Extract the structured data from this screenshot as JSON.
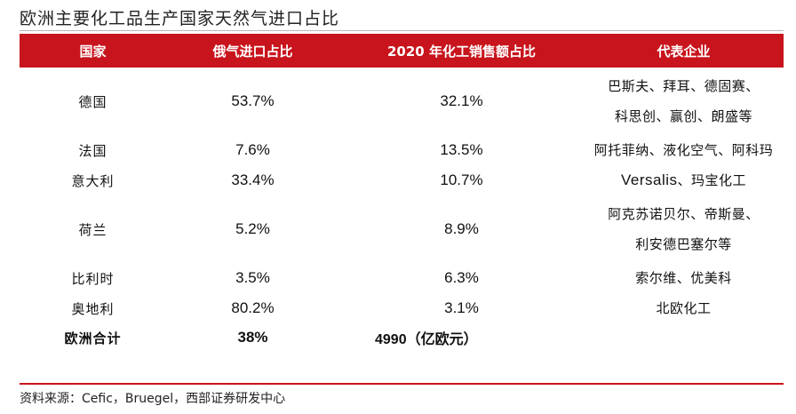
{
  "title": "欧洲主要化工品生产国家天然气进口占比",
  "headers": [
    "国家",
    "俄气进口占比",
    "2020 年化工销售额占比",
    "代表企业"
  ],
  "rows": [
    {
      "country": "德国",
      "gas": "53.7%",
      "sales": "32.1%",
      "companies": [
        "巴斯夫、拜耳、德固赛、",
        "科思创、赢创、朗盛等"
      ]
    },
    {
      "country": "法国",
      "gas": "7.6%",
      "sales": "13.5%",
      "companies": [
        "阿托菲纳、液化空气、阿科玛"
      ]
    },
    {
      "country": "意大利",
      "gas": "33.4%",
      "sales": "10.7%",
      "companies_latin": "Versalis",
      "companies_rest": "、玛宝化工"
    },
    {
      "country": "荷兰",
      "gas": "5.2%",
      "sales": "8.9%",
      "companies": [
        "阿克苏诺贝尔、帝斯曼、",
        "利安德巴塞尔等"
      ]
    },
    {
      "country": "比利时",
      "gas": "3.5%",
      "sales": "6.3%",
      "companies": [
        "索尔维、优美科"
      ]
    },
    {
      "country": "奥地利",
      "gas": "80.2%",
      "sales": "3.1%",
      "companies": [
        "北欧化工"
      ]
    }
  ],
  "total": {
    "label": "欧洲合计",
    "gas": "38%",
    "sales": "4990（亿欧元）"
  },
  "source": "资料来源：Cefic，Bruegel，西部证券研发中心",
  "colors": {
    "header_bg": "#c8141c",
    "rule": "#c8141c"
  }
}
